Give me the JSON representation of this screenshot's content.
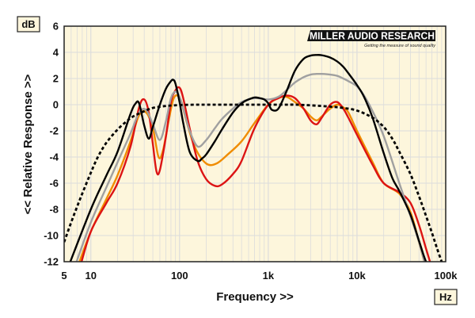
{
  "chart_data": {
    "type": "line",
    "xscale": "log",
    "xlim": [
      5,
      100000
    ],
    "ylim": [
      -12,
      6
    ],
    "xlabel": "Frequency >>",
    "ylabel": "<< Relative Response >>",
    "x_unit": "Hz",
    "y_unit": "dB",
    "grid": true,
    "x_ticks": [
      {
        "value": 5,
        "label": "5"
      },
      {
        "value": 10,
        "label": "10"
      },
      {
        "value": 100,
        "label": "100"
      },
      {
        "value": 1000,
        "label": "1k"
      },
      {
        "value": 10000,
        "label": "10k"
      },
      {
        "value": 100000,
        "label": "100k"
      }
    ],
    "y_ticks": [
      6,
      4,
      2,
      0,
      -2,
      -4,
      -6,
      -8,
      -10,
      -12
    ],
    "y_tick_labels": [
      "6",
      "4",
      "2",
      "0",
      "-2",
      "-4",
      "-6",
      "-8",
      "-10",
      "-12"
    ],
    "series": [
      {
        "color": "#f08c00",
        "dash": "solid",
        "x": [
          7,
          10,
          15,
          20,
          28,
          35,
          42,
          50,
          58,
          65,
          75,
          85,
          95,
          105,
          120,
          150,
          200,
          260,
          350,
          500,
          700,
          1000,
          1300,
          1600,
          2000,
          2500,
          3000,
          3500,
          4000,
          5000,
          6000,
          7000,
          8000,
          10000,
          15000,
          20000,
          30000,
          40000,
          50000,
          60000
        ],
        "y": [
          -12.5,
          -9.7,
          -7.2,
          -5.4,
          -2.8,
          -0.8,
          -0.6,
          -1.8,
          -4.0,
          -3.5,
          -1.3,
          0.4,
          0.7,
          0.2,
          -1.3,
          -3.3,
          -4.5,
          -4.5,
          -3.8,
          -2.8,
          -1.4,
          0.0,
          0.5,
          0.6,
          0.2,
          -0.3,
          -0.9,
          -1.2,
          -0.9,
          -0.3,
          0.0,
          -0.2,
          -0.6,
          -2.0,
          -4.4,
          -6.0,
          -6.8,
          -8.2,
          -10.5,
          -12.5
        ]
      },
      {
        "color": "#dc1414",
        "dash": "solid",
        "x": [
          7.5,
          10,
          15,
          20,
          28,
          35,
          40,
          45,
          50,
          55,
          60,
          70,
          80,
          90,
          100,
          110,
          130,
          160,
          200,
          250,
          300,
          400,
          500,
          700,
          1000,
          1300,
          1600,
          2000,
          2500,
          3000,
          3500,
          4000,
          5000,
          6000,
          7000,
          8000,
          10000,
          15000,
          20000,
          30000,
          40000,
          50000,
          60000,
          70000
        ],
        "y": [
          -12.5,
          -9.7,
          -7.5,
          -6.0,
          -3.2,
          -0.2,
          0.4,
          -0.6,
          -3.0,
          -5.1,
          -5.0,
          -2.5,
          0.2,
          1.1,
          1.3,
          0.5,
          -1.8,
          -4.3,
          -5.7,
          -6.2,
          -6.1,
          -5.3,
          -4.3,
          -1.8,
          0.0,
          0.5,
          0.7,
          0.5,
          -0.3,
          -1.2,
          -1.5,
          -1.0,
          0.0,
          0.2,
          -0.3,
          -1.0,
          -2.3,
          -4.6,
          -6.0,
          -6.7,
          -7.5,
          -9.2,
          -11.0,
          -12.5
        ]
      },
      {
        "color": "#a0a0a0",
        "dash": "solid",
        "x": [
          6.5,
          10,
          15,
          20,
          28,
          35,
          42,
          50,
          60,
          70,
          80,
          90,
          100,
          110,
          130,
          160,
          200,
          250,
          300,
          400,
          500,
          700,
          1000,
          1300,
          1600,
          2000,
          2500,
          3000,
          3500,
          4000,
          5000,
          6000,
          7000,
          8000,
          10000,
          12000,
          15000,
          20000,
          30000,
          40000,
          50000,
          60000
        ],
        "y": [
          -12.5,
          -9.0,
          -6.3,
          -4.4,
          -2.2,
          -0.6,
          -0.4,
          -1.5,
          -2.7,
          -1.3,
          0.5,
          1.0,
          0.6,
          -0.3,
          -2.0,
          -3.2,
          -2.7,
          -1.8,
          -1.1,
          -0.3,
          0.2,
          0.5,
          0.4,
          0.6,
          1.1,
          1.7,
          2.1,
          2.3,
          2.35,
          2.35,
          2.3,
          2.2,
          2.0,
          1.8,
          1.4,
          0.7,
          -0.5,
          -2.4,
          -6.0,
          -8.5,
          -10.5,
          -12.5
        ]
      },
      {
        "color": "#000000",
        "dash": "solid",
        "x": [
          5.5,
          10,
          15,
          20,
          28,
          32,
          35,
          40,
          45,
          50,
          60,
          70,
          80,
          85,
          90,
          100,
          110,
          130,
          160,
          180,
          200,
          250,
          300,
          400,
          500,
          600,
          700,
          800,
          900,
          1000,
          1100,
          1300,
          1600,
          2000,
          2500,
          3000,
          3500,
          4000,
          5000,
          6000,
          7000,
          8000,
          10000,
          12000,
          15000,
          20000,
          25000,
          30000,
          40000,
          50000,
          60000,
          70000
        ],
        "y": [
          -12.5,
          -8.0,
          -5.4,
          -3.6,
          -0.7,
          0.1,
          0.1,
          -1.6,
          -2.6,
          -1.7,
          0.0,
          1.2,
          1.8,
          1.9,
          1.6,
          0.2,
          -1.4,
          -3.6,
          -4.3,
          -4.1,
          -3.8,
          -2.8,
          -1.9,
          -0.6,
          0.1,
          0.4,
          0.55,
          0.5,
          0.4,
          0.1,
          -0.4,
          -0.3,
          1.0,
          2.6,
          3.5,
          3.75,
          3.8,
          3.78,
          3.6,
          3.3,
          2.9,
          2.4,
          1.5,
          0.6,
          -1.0,
          -3.7,
          -5.6,
          -6.6,
          -8.4,
          -10.4,
          -12.0,
          -12.5
        ]
      },
      {
        "color": "#000000",
        "dash": "dashed",
        "x": [
          5,
          6,
          7,
          8,
          10,
          12,
          15,
          20,
          25,
          30,
          40,
          50,
          70,
          100,
          150,
          200,
          300,
          500,
          700,
          1000,
          1500,
          2000,
          3000,
          5000,
          7000,
          10000,
          15000,
          20000,
          25000,
          30000,
          40000,
          50000,
          60000,
          70000,
          80000,
          90000
        ],
        "y": [
          -10.5,
          -9.0,
          -7.8,
          -6.8,
          -5.2,
          -4.0,
          -2.9,
          -1.9,
          -1.3,
          -0.9,
          -0.5,
          -0.25,
          -0.1,
          -0.03,
          0.0,
          0.0,
          0.0,
          0.0,
          0.0,
          0.0,
          0.0,
          0.0,
          -0.05,
          -0.15,
          -0.25,
          -0.45,
          -1.0,
          -1.7,
          -2.6,
          -3.6,
          -5.3,
          -7.0,
          -8.5,
          -9.8,
          -11.0,
          -12.0
        ]
      }
    ]
  },
  "logo": {
    "text": "MILLER AUDIO RESEARCH",
    "tagline": "Getting the measure of sound quality"
  },
  "colors": {
    "plot_background": "#fdf6dc",
    "grid": "#dcdcdc",
    "border": "#222222"
  }
}
